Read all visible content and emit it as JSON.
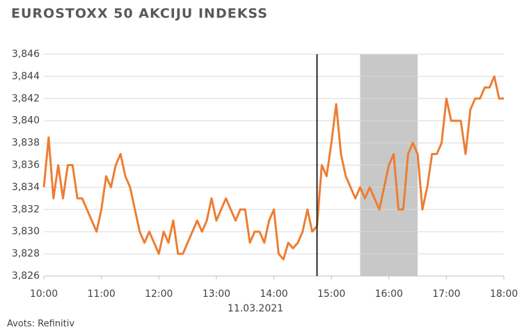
{
  "chart_data": {
    "type": "line",
    "title": "EUROSTOXX 50 AKCIJU INDEKSS",
    "x_label": "11.03.2021",
    "source": "Avots: Refinitiv",
    "x": [
      600,
      605,
      610,
      615,
      620,
      625,
      630,
      635,
      640,
      645,
      650,
      655,
      660,
      665,
      670,
      675,
      680,
      685,
      690,
      695,
      700,
      705,
      710,
      715,
      720,
      725,
      730,
      735,
      740,
      745,
      750,
      755,
      760,
      765,
      770,
      775,
      780,
      785,
      790,
      795,
      800,
      805,
      810,
      815,
      820,
      825,
      830,
      835,
      840,
      845,
      850,
      855,
      860,
      865,
      870,
      875,
      880,
      885,
      890,
      895,
      900,
      905,
      910,
      915,
      920,
      925,
      930,
      935,
      940,
      945,
      950,
      955,
      960,
      965,
      970,
      975,
      980,
      985,
      990,
      995,
      1000,
      1005,
      1010,
      1015,
      1020,
      1025,
      1030,
      1035,
      1040,
      1045,
      1050,
      1055,
      1060,
      1065,
      1070,
      1075,
      1080
    ],
    "series": [
      {
        "color": "#ed7d31",
        "values": [
          3.834,
          3.8385,
          3.833,
          3.836,
          3.833,
          3.836,
          3.836,
          3.833,
          3.833,
          3.832,
          3.831,
          3.83,
          3.832,
          3.835,
          3.834,
          3.836,
          3.837,
          3.835,
          3.834,
          3.832,
          3.83,
          3.829,
          3.83,
          3.829,
          3.828,
          3.83,
          3.829,
          3.831,
          3.828,
          3.828,
          3.829,
          3.83,
          3.831,
          3.83,
          3.831,
          3.833,
          3.831,
          3.832,
          3.833,
          3.832,
          3.831,
          3.832,
          3.832,
          3.829,
          3.83,
          3.83,
          3.829,
          3.831,
          3.832,
          3.828,
          3.8275,
          3.829,
          3.8285,
          3.829,
          3.83,
          3.832,
          3.83,
          3.8305,
          3.836,
          3.835,
          3.838,
          3.8415,
          3.837,
          3.835,
          3.834,
          3.833,
          3.834,
          3.833,
          3.834,
          3.833,
          3.832,
          3.834,
          3.836,
          3.837,
          3.832,
          3.832,
          3.837,
          3.838,
          3.837,
          3.832,
          3.834,
          3.837,
          3.837,
          3.838,
          3.842,
          3.84,
          3.84,
          3.84,
          3.837,
          3.841,
          3.842,
          3.842,
          3.843,
          3.843,
          3.844,
          3.842,
          3.842
        ]
      }
    ],
    "vline": 885,
    "shade": [
      930,
      990
    ],
    "shade_color": "#c8c8c8",
    "xlim": [
      600,
      1080
    ],
    "xticks": [
      {
        "value": 600,
        "label": "10:00"
      },
      {
        "value": 660,
        "label": "11:00"
      },
      {
        "value": 720,
        "label": "12:00"
      },
      {
        "value": 780,
        "label": "13:00"
      },
      {
        "value": 840,
        "label": "14:00"
      },
      {
        "value": 900,
        "label": "15:00"
      },
      {
        "value": 960,
        "label": "16:00"
      },
      {
        "value": 1020,
        "label": "17:00"
      },
      {
        "value": 1080,
        "label": "18:00"
      }
    ],
    "ylim": [
      3.826,
      3.846
    ],
    "yticks": [
      {
        "value": 3.826,
        "label": "3,826"
      },
      {
        "value": 3.828,
        "label": "3,828"
      },
      {
        "value": 3.83,
        "label": "3,830"
      },
      {
        "value": 3.832,
        "label": "3,832"
      },
      {
        "value": 3.834,
        "label": "3,834"
      },
      {
        "value": 3.836,
        "label": "3,836"
      },
      {
        "value": 3.838,
        "label": "3,838"
      },
      {
        "value": 3.84,
        "label": "3,840"
      },
      {
        "value": 3.842,
        "label": "3,842"
      },
      {
        "value": 3.844,
        "label": "3,844"
      },
      {
        "value": 3.846,
        "label": "3,846"
      }
    ],
    "grid": true
  }
}
